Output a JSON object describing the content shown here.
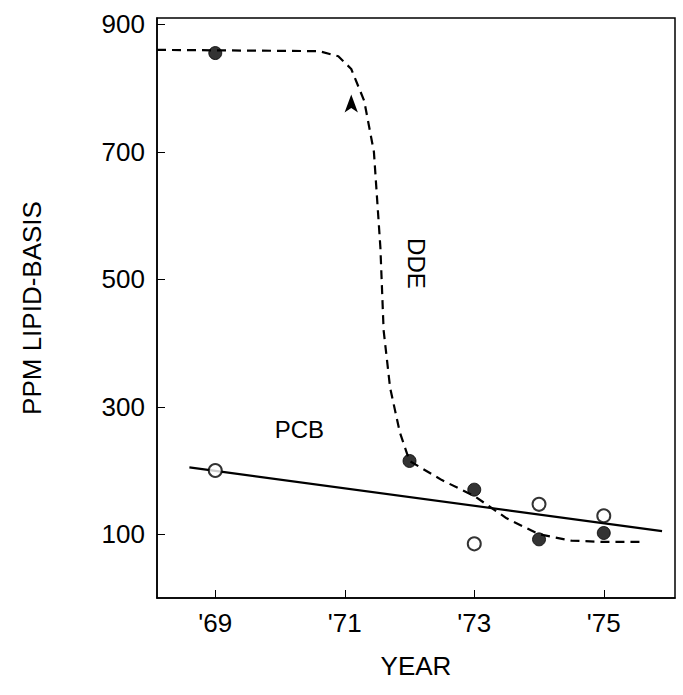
{
  "chart_data": {
    "type": "scatter",
    "xlabel": "YEAR",
    "ylabel": "PPM LIPID-BASIS",
    "xlim": [
      1968.1,
      1976.1
    ],
    "ylim": [
      0,
      910
    ],
    "xticks": [
      {
        "value": 1969,
        "label": "'69"
      },
      {
        "value": 1971,
        "label": "'71"
      },
      {
        "value": 1973,
        "label": "'73"
      },
      {
        "value": 1975,
        "label": "'75"
      }
    ],
    "yticks": [
      100,
      300,
      500,
      700,
      900
    ],
    "grid": false,
    "series": [
      {
        "name": "DDE",
        "type": "line",
        "line_style": "dashed",
        "color": "#000000",
        "x": [
          1968.1,
          1970.6,
          1970.9,
          1971.1,
          1971.3,
          1971.45,
          1971.55,
          1971.6,
          1971.7,
          1971.85,
          1972,
          1972.5,
          1973,
          1973.5,
          1974,
          1974.5,
          1975,
          1975.6
        ],
        "values": [
          860,
          858,
          850,
          830,
          780,
          700,
          550,
          420,
          330,
          260,
          215,
          185,
          160,
          125,
          100,
          90,
          88,
          88
        ]
      },
      {
        "name": "PCB",
        "type": "line",
        "line_style": "solid",
        "color": "#000000",
        "x": [
          1968.6,
          1975.9
        ],
        "values": [
          205,
          105
        ]
      },
      {
        "name": "DDE",
        "type": "scatter",
        "marker": "circle",
        "color": "#000000",
        "x": [
          1969,
          1972,
          1973,
          1974,
          1975
        ],
        "values": [
          855,
          215,
          170,
          92,
          102
        ]
      },
      {
        "name": "PCB",
        "type": "scatter",
        "marker": "open circle",
        "color": "#000000",
        "x": [
          1969,
          1973,
          1974,
          1975
        ],
        "values": [
          200,
          85,
          147,
          129
        ]
      }
    ],
    "annotations": [
      {
        "text": "DDE",
        "x": 1972.1,
        "y": 525,
        "orientation": "vertical"
      },
      {
        "text": "PCB",
        "x": 1970.3,
        "y": 265,
        "orientation": "horizontal"
      }
    ],
    "arrow": {
      "x": 1971.1,
      "y": 790
    }
  }
}
